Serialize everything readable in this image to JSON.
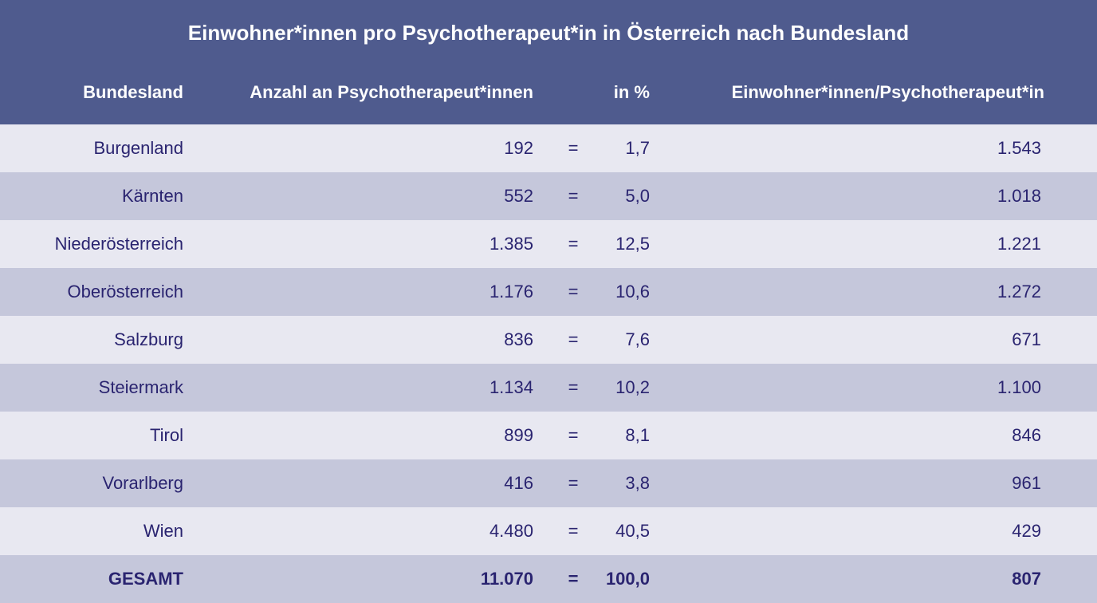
{
  "colors": {
    "header": "#4f5b8e",
    "row_light": "#e8e8f1",
    "row_dark": "#c5c7db",
    "text": "#2a2470"
  },
  "chart_data": {
    "type": "table",
    "title": "Einwohner*innen pro Psychotherapeut*in in Österreich nach Bundesland",
    "columns": [
      "Bundesland",
      "Anzahl an Psychotherapeut*innen",
      "in %",
      "Einwohner*innen/Psychotherapeut*in"
    ],
    "rows": [
      {
        "name": "Burgenland",
        "count": "192",
        "eq": "=",
        "percent": "1,7",
        "ratio": "1.543"
      },
      {
        "name": "Kärnten",
        "count": "552",
        "eq": "=",
        "percent": "5,0",
        "ratio": "1.018"
      },
      {
        "name": "Niederösterreich",
        "count": "1.385",
        "eq": "=",
        "percent": "12,5",
        "ratio": "1.221"
      },
      {
        "name": "Oberösterreich",
        "count": "1.176",
        "eq": "=",
        "percent": "10,6",
        "ratio": "1.272"
      },
      {
        "name": "Salzburg",
        "count": "836",
        "eq": "=",
        "percent": "7,6",
        "ratio": "671"
      },
      {
        "name": "Steiermark",
        "count": "1.134",
        "eq": "=",
        "percent": "10,2",
        "ratio": "1.100"
      },
      {
        "name": "Tirol",
        "count": "899",
        "eq": "=",
        "percent": "8,1",
        "ratio": "846"
      },
      {
        "name": "Vorarlberg",
        "count": "416",
        "eq": "=",
        "percent": "3,8",
        "ratio": "961"
      },
      {
        "name": "Wien",
        "count": "4.480",
        "eq": "=",
        "percent": "40,5",
        "ratio": "429"
      }
    ],
    "total": {
      "name": "GESAMT",
      "count": "11.070",
      "eq": "=",
      "percent": "100,0",
      "ratio": "807"
    }
  }
}
